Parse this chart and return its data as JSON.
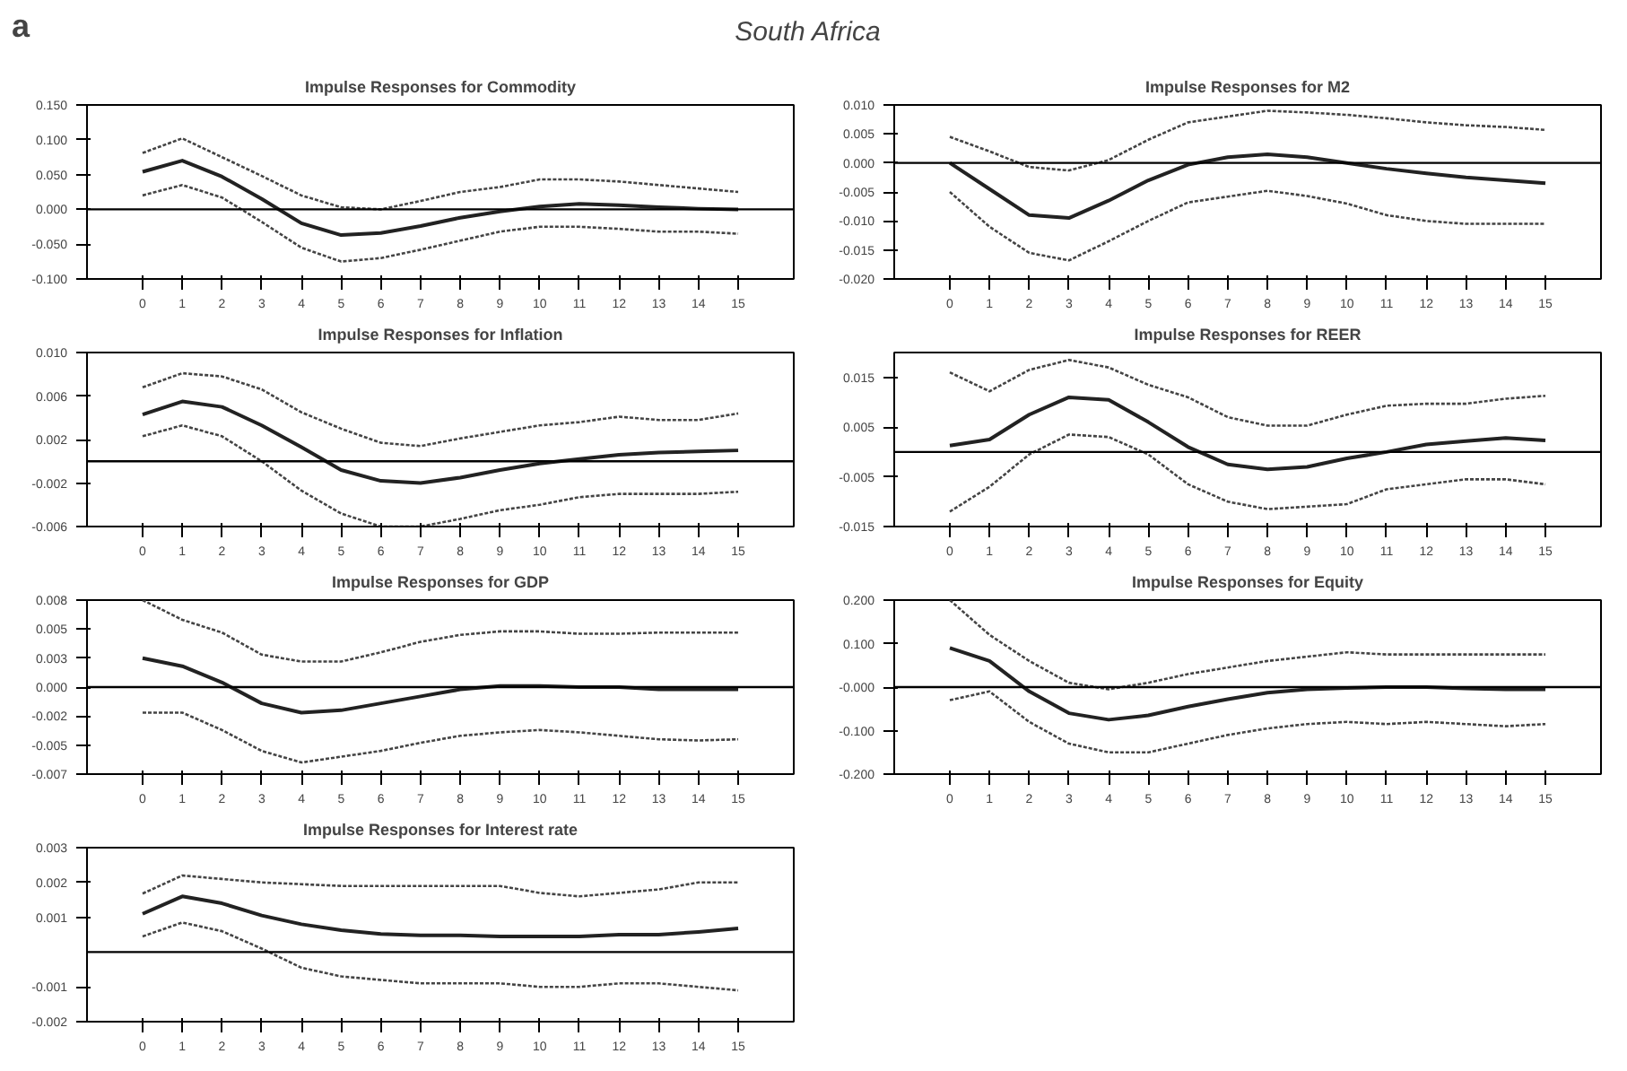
{
  "chart_data": [
    {
      "type": "other",
      "title": "South Africa",
      "annotations": [
        "a"
      ]
    },
    {
      "type": "line",
      "title": "Impulse Responses for Commodity",
      "x": [
        0,
        1,
        2,
        3,
        4,
        5,
        6,
        7,
        8,
        9,
        10,
        11,
        12,
        13,
        14,
        15
      ],
      "xlim": [
        -1.4,
        16.4
      ],
      "xticks": [
        0,
        1,
        2,
        3,
        4,
        5,
        6,
        7,
        8,
        9,
        10,
        11,
        12,
        13,
        14,
        15
      ],
      "ylim": [
        -0.1,
        0.15
      ],
      "yticks": [
        {
          "value": -0.1,
          "label": "-0.100"
        },
        {
          "value": -0.05,
          "label": "-0.050"
        },
        {
          "value": 0,
          "label": "0.000"
        },
        {
          "value": 0.05,
          "label": "0.050"
        },
        {
          "value": 0.1,
          "label": "0.100"
        },
        {
          "value": 0.15,
          "label": "0.150"
        }
      ],
      "ref_lines": [
        {
          "axis": "y",
          "value": 0,
          "color": "#000000"
        }
      ],
      "series": [
        {
          "color": "#222222",
          "line_style": "solid",
          "values": [
            0.054,
            0.07,
            0.047,
            0.015,
            -0.02,
            -0.037,
            -0.034,
            -0.024,
            -0.012,
            -0.003,
            0.004,
            0.008,
            0.006,
            0.003,
            0.001,
            0.0
          ]
        },
        {
          "color": "#444444",
          "line_style": "dotted",
          "values": [
            0.081,
            0.102,
            0.075,
            0.048,
            0.02,
            0.003,
            0.0,
            0.012,
            0.025,
            0.032,
            0.043,
            0.043,
            0.04,
            0.035,
            0.03,
            0.025
          ]
        },
        {
          "color": "#444444",
          "line_style": "dotted",
          "values": [
            0.02,
            0.035,
            0.017,
            -0.018,
            -0.055,
            -0.075,
            -0.07,
            -0.058,
            -0.045,
            -0.032,
            -0.025,
            -0.025,
            -0.028,
            -0.032,
            -0.032,
            -0.035
          ]
        }
      ]
    },
    {
      "type": "line",
      "title": "Impulse Responses for M2",
      "x": [
        0,
        1,
        2,
        3,
        4,
        5,
        6,
        7,
        8,
        9,
        10,
        11,
        12,
        13,
        14,
        15
      ],
      "xlim": [
        -1.4,
        16.4
      ],
      "xticks": [
        0,
        1,
        2,
        3,
        4,
        5,
        6,
        7,
        8,
        9,
        10,
        11,
        12,
        13,
        14,
        15
      ],
      "ylim": [
        -0.02,
        0.01
      ],
      "yticks": [
        {
          "value": -0.02,
          "label": "-0.020"
        },
        {
          "value": -0.015,
          "label": "-0.015"
        },
        {
          "value": -0.01,
          "label": "-0.010"
        },
        {
          "value": -0.005,
          "label": "-0.005"
        },
        {
          "value": 0,
          "label": "0.000"
        },
        {
          "value": 0.005,
          "label": "0.005"
        },
        {
          "value": 0.01,
          "label": "0.010"
        }
      ],
      "ref_lines": [
        {
          "axis": "y",
          "value": 0,
          "color": "#000000"
        }
      ],
      "series": [
        {
          "color": "#222222",
          "line_style": "solid",
          "values": [
            0,
            -0.0045,
            -0.009,
            -0.0095,
            -0.0065,
            -0.003,
            -0.0003,
            0.001,
            0.0015,
            0.001,
            0,
            -0.001,
            -0.0018,
            -0.0025,
            -0.003,
            -0.0035
          ]
        },
        {
          "color": "#444444",
          "line_style": "dotted",
          "values": [
            0.0045,
            0.002,
            -0.0007,
            -0.0013,
            0.0005,
            0.004,
            0.007,
            0.008,
            0.009,
            0.0087,
            0.0083,
            0.0077,
            0.007,
            0.0065,
            0.0062,
            0.0057
          ]
        },
        {
          "color": "#444444",
          "line_style": "dotted",
          "values": [
            -0.005,
            -0.011,
            -0.0155,
            -0.0168,
            -0.0135,
            -0.01,
            -0.0068,
            -0.0058,
            -0.0048,
            -0.0057,
            -0.007,
            -0.009,
            -0.01,
            -0.0105,
            -0.0105,
            -0.0105
          ]
        }
      ]
    },
    {
      "type": "line",
      "title": "Impulse Responses for Inflation",
      "x": [
        0,
        1,
        2,
        3,
        4,
        5,
        6,
        7,
        8,
        9,
        10,
        11,
        12,
        13,
        14,
        15
      ],
      "xlim": [
        -1.4,
        16.4
      ],
      "xticks": [
        0,
        1,
        2,
        3,
        4,
        5,
        6,
        7,
        8,
        9,
        10,
        11,
        12,
        13,
        14,
        15
      ],
      "ylim": [
        -0.006,
        0.01
      ],
      "yticks": [
        {
          "value": -0.006,
          "label": "-0.006"
        },
        {
          "value": -0.002,
          "label": "-0.002"
        },
        {
          "value": 0.002,
          "label": "0.002"
        },
        {
          "value": 0.006,
          "label": "0.006"
        },
        {
          "value": 0.01,
          "label": "0.010"
        }
      ],
      "ref_lines": [
        {
          "axis": "y",
          "value": 0,
          "color": "#000000"
        }
      ],
      "series": [
        {
          "color": "#222222",
          "line_style": "solid",
          "values": [
            0.0043,
            0.0055,
            0.005,
            0.0033,
            0.0013,
            -0.0008,
            -0.0018,
            -0.002,
            -0.0015,
            -0.0008,
            -0.0002,
            0.0002,
            0.0006,
            0.0008,
            0.0009,
            0.001
          ]
        },
        {
          "color": "#444444",
          "line_style": "dotted",
          "values": [
            0.0068,
            0.0081,
            0.0078,
            0.0066,
            0.0045,
            0.003,
            0.0017,
            0.0014,
            0.0021,
            0.0027,
            0.0033,
            0.0036,
            0.0041,
            0.0038,
            0.0038,
            0.0044
          ]
        },
        {
          "color": "#444444",
          "line_style": "dotted",
          "values": [
            0.0023,
            0.0033,
            0.0023,
            0.0,
            -0.0027,
            -0.0048,
            -0.006,
            -0.006,
            -0.0053,
            -0.0045,
            -0.004,
            -0.0033,
            -0.003,
            -0.003,
            -0.003,
            -0.0028
          ]
        }
      ]
    },
    {
      "type": "line",
      "title": "Impulse Responses for REER",
      "x": [
        0,
        1,
        2,
        3,
        4,
        5,
        6,
        7,
        8,
        9,
        10,
        11,
        12,
        13,
        14,
        15
      ],
      "xlim": [
        -1.4,
        16.4
      ],
      "xticks": [
        0,
        1,
        2,
        3,
        4,
        5,
        6,
        7,
        8,
        9,
        10,
        11,
        12,
        13,
        14,
        15
      ],
      "ylim": [
        -0.015,
        0.02
      ],
      "yticks": [
        {
          "value": -0.015,
          "label": "-0.015"
        },
        {
          "value": -0.005,
          "label": "-0.005"
        },
        {
          "value": 0.005,
          "label": "0.005"
        },
        {
          "value": 0.015,
          "label": "0.015"
        }
      ],
      "ref_lines": [
        {
          "axis": "y",
          "value": 0,
          "color": "#000000"
        }
      ],
      "series": [
        {
          "color": "#222222",
          "line_style": "solid",
          "values": [
            0.0013,
            0.0025,
            0.0075,
            0.011,
            0.0105,
            0.006,
            0.001,
            -0.0025,
            -0.0035,
            -0.003,
            -0.0013,
            0.0,
            0.0015,
            0.0022,
            0.0028,
            0.0023
          ]
        },
        {
          "color": "#444444",
          "line_style": "dotted",
          "values": [
            0.016,
            0.0122,
            0.0165,
            0.0185,
            0.017,
            0.0135,
            0.011,
            0.007,
            0.0053,
            0.0053,
            0.0075,
            0.0093,
            0.0097,
            0.0097,
            0.0107,
            0.0113
          ]
        },
        {
          "color": "#444444",
          "line_style": "dotted",
          "values": [
            -0.012,
            -0.007,
            -0.0005,
            0.0035,
            0.003,
            -0.0005,
            -0.0065,
            -0.01,
            -0.0115,
            -0.011,
            -0.0105,
            -0.0075,
            -0.0065,
            -0.0055,
            -0.0055,
            -0.0065
          ]
        }
      ]
    },
    {
      "type": "line",
      "title": "Impulse Responses for GDP",
      "x": [
        0,
        1,
        2,
        3,
        4,
        5,
        6,
        7,
        8,
        9,
        10,
        11,
        12,
        13,
        14,
        15
      ],
      "xlim": [
        -1.4,
        16.4
      ],
      "xticks": [
        0,
        1,
        2,
        3,
        4,
        5,
        6,
        7,
        8,
        9,
        10,
        11,
        12,
        13,
        14,
        15
      ],
      "ylim": [
        -0.0075,
        0.0075
      ],
      "yticks": [
        {
          "value": -0.0075,
          "label": "-0.007"
        },
        {
          "value": -0.005,
          "label": "-0.005"
        },
        {
          "value": -0.0025,
          "label": "-0.002"
        },
        {
          "value": 0,
          "label": "0.000"
        },
        {
          "value": 0.0025,
          "label": "0.003"
        },
        {
          "value": 0.005,
          "label": "0.005"
        },
        {
          "value": 0.0075,
          "label": "0.008"
        }
      ],
      "ref_lines": [
        {
          "axis": "y",
          "value": 0,
          "color": "#000000"
        }
      ],
      "series": [
        {
          "color": "#222222",
          "line_style": "solid",
          "values": [
            0.0025,
            0.0018,
            0.0004,
            -0.0014,
            -0.0022,
            -0.002,
            -0.0014,
            -0.0008,
            -0.0002,
            0.0001,
            0.0001,
            0.0,
            0.0,
            -0.0002,
            -0.0002,
            -0.0002
          ]
        },
        {
          "color": "#444444",
          "line_style": "dotted",
          "values": [
            0.0075,
            0.0058,
            0.0047,
            0.0028,
            0.0022,
            0.0022,
            0.003,
            0.0039,
            0.0045,
            0.0048,
            0.0048,
            0.0046,
            0.0046,
            0.0047,
            0.0047,
            0.0047
          ]
        },
        {
          "color": "#444444",
          "line_style": "dotted",
          "values": [
            -0.0022,
            -0.0022,
            -0.0037,
            -0.0055,
            -0.0065,
            -0.006,
            -0.0055,
            -0.0048,
            -0.0042,
            -0.0039,
            -0.0037,
            -0.0039,
            -0.0042,
            -0.0045,
            -0.0046,
            -0.0045
          ]
        }
      ]
    },
    {
      "type": "line",
      "title": "Impulse Responses for Equity",
      "x": [
        0,
        1,
        2,
        3,
        4,
        5,
        6,
        7,
        8,
        9,
        10,
        11,
        12,
        13,
        14,
        15
      ],
      "xlim": [
        -1.4,
        16.4
      ],
      "xticks": [
        0,
        1,
        2,
        3,
        4,
        5,
        6,
        7,
        8,
        9,
        10,
        11,
        12,
        13,
        14,
        15
      ],
      "ylim": [
        -0.2,
        0.2
      ],
      "yticks": [
        {
          "value": -0.2,
          "label": "-0.200"
        },
        {
          "value": -0.1,
          "label": "-0.100"
        },
        {
          "value": 0,
          "label": "-0.000"
        },
        {
          "value": 0.1,
          "label": "0.100"
        },
        {
          "value": 0.2,
          "label": "0.200"
        }
      ],
      "ref_lines": [
        {
          "axis": "y",
          "value": 0,
          "color": "#000000"
        }
      ],
      "series": [
        {
          "color": "#222222",
          "line_style": "solid",
          "values": [
            0.09,
            0.06,
            -0.01,
            -0.06,
            -0.075,
            -0.065,
            -0.045,
            -0.028,
            -0.013,
            -0.005,
            -0.002,
            0,
            0,
            -0.003,
            -0.005,
            -0.005
          ]
        },
        {
          "color": "#444444",
          "line_style": "dotted",
          "values": [
            0.2,
            0.12,
            0.06,
            0.01,
            -0.005,
            0.01,
            0.03,
            0.045,
            0.06,
            0.07,
            0.08,
            0.075,
            0.075,
            0.075,
            0.075,
            0.075
          ]
        },
        {
          "color": "#444444",
          "line_style": "dotted",
          "values": [
            -0.03,
            -0.01,
            -0.08,
            -0.13,
            -0.15,
            -0.15,
            -0.13,
            -0.11,
            -0.095,
            -0.085,
            -0.08,
            -0.085,
            -0.08,
            -0.085,
            -0.09,
            -0.085
          ]
        }
      ]
    },
    {
      "type": "line",
      "title": "Impulse Responses for Interest rate",
      "x": [
        0,
        1,
        2,
        3,
        4,
        5,
        6,
        7,
        8,
        9,
        10,
        11,
        12,
        13,
        14,
        15
      ],
      "xlim": [
        -1.4,
        16.4
      ],
      "xticks": [
        0,
        1,
        2,
        3,
        4,
        5,
        6,
        7,
        8,
        9,
        10,
        11,
        12,
        13,
        14,
        15
      ],
      "ylim": [
        -0.002,
        0.003
      ],
      "yticks": [
        {
          "value": -0.002,
          "label": "-0.002"
        },
        {
          "value": -0.001,
          "label": "-0.001"
        },
        {
          "value": 0.001,
          "label": "0.001"
        },
        {
          "value": 0.002,
          "label": "0.002"
        },
        {
          "value": 0.003,
          "label": "0.003"
        }
      ],
      "ref_lines": [
        {
          "axis": "y",
          "value": 0,
          "color": "#000000"
        }
      ],
      "series": [
        {
          "color": "#222222",
          "line_style": "solid",
          "values": [
            0.0011,
            0.0016,
            0.0014,
            0.00105,
            0.0008,
            0.00063,
            0.00052,
            0.00048,
            0.00048,
            0.00045,
            0.00045,
            0.00045,
            0.0005,
            0.0005,
            0.00058,
            0.00068
          ]
        },
        {
          "color": "#444444",
          "line_style": "dotted",
          "values": [
            0.00168,
            0.0022,
            0.0021,
            0.002,
            0.00195,
            0.0019,
            0.0019,
            0.0019,
            0.0019,
            0.0019,
            0.0017,
            0.0016,
            0.0017,
            0.0018,
            0.002,
            0.002
          ]
        },
        {
          "color": "#444444",
          "line_style": "dotted",
          "values": [
            0.00045,
            0.00085,
            0.0006,
            0.0001,
            -0.00045,
            -0.0007,
            -0.0008,
            -0.0009,
            -0.0009,
            -0.0009,
            -0.001,
            -0.001,
            -0.0009,
            -0.0009,
            -0.001,
            -0.0011
          ]
        }
      ]
    }
  ]
}
